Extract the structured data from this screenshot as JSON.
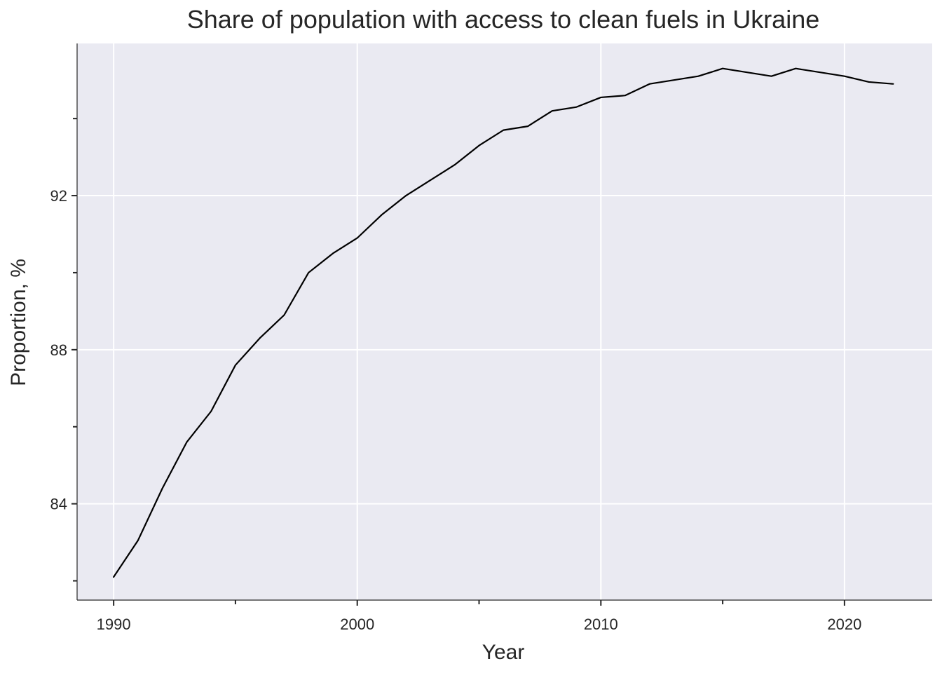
{
  "chart_data": {
    "type": "line",
    "title": "Share of population with access to clean fuels in Ukraine",
    "xlabel": "Year",
    "ylabel": "Proportion, %",
    "xlim": [
      1988.5,
      2023.6
    ],
    "ylim": [
      81.5,
      95.95
    ],
    "x_ticks_major": [
      1990,
      2000,
      2010,
      2020
    ],
    "x_tick_labels": [
      "1990",
      "2000",
      "2010",
      "2020"
    ],
    "x_ticks_minor": [
      1995,
      2005,
      2015
    ],
    "y_ticks_major": [
      84,
      88,
      92
    ],
    "y_tick_labels": [
      "84",
      "88",
      "92"
    ],
    "y_ticks_minor": [
      82,
      86,
      90,
      94
    ],
    "grid": true,
    "colors": {
      "panel_background": "#eaeaf2",
      "grid": "#ffffff",
      "line": "#000000",
      "text": "#262626"
    },
    "series": [
      {
        "x": [
          1990,
          1991,
          1992,
          1993,
          1994,
          1995,
          1996,
          1997,
          1998,
          1999,
          2000,
          2001,
          2002,
          2003,
          2004,
          2005,
          2006,
          2007,
          2008,
          2009,
          2010,
          2011,
          2012,
          2013,
          2014,
          2015,
          2016,
          2017,
          2018,
          2019,
          2020,
          2021,
          2022
        ],
        "values": [
          82.1,
          83.05,
          84.4,
          85.6,
          86.4,
          87.6,
          88.3,
          88.9,
          90.0,
          90.5,
          90.9,
          91.5,
          92.0,
          92.4,
          92.8,
          93.3,
          93.7,
          93.8,
          94.2,
          94.3,
          94.55,
          94.6,
          94.9,
          95.0,
          95.1,
          95.3,
          95.2,
          95.1,
          95.3,
          95.2,
          95.1,
          94.95,
          94.9
        ]
      }
    ]
  }
}
